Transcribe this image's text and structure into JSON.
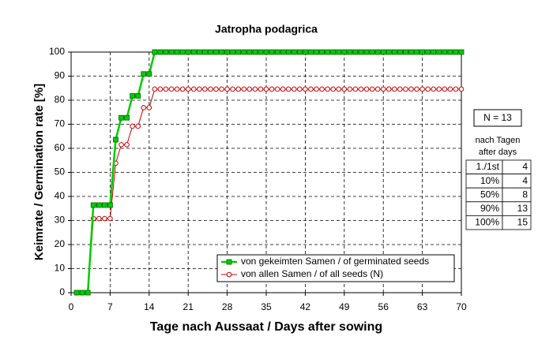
{
  "chart_data": {
    "type": "line",
    "title": "Jatropha podagrica",
    "x_label": "Tage nach Aussaat / Days after sowing",
    "y_label": "Keimrate / Germination rate [%]",
    "x": [
      1,
      2,
      3,
      4,
      5,
      6,
      7,
      8,
      9,
      10,
      11,
      12,
      13,
      14,
      15,
      16,
      17,
      18,
      19,
      20,
      21,
      22,
      23,
      24,
      25,
      26,
      27,
      28,
      29,
      30,
      31,
      32,
      33,
      34,
      35,
      36,
      37,
      38,
      39,
      40,
      41,
      42,
      43,
      44,
      45,
      46,
      47,
      48,
      49,
      50,
      51,
      52,
      53,
      54,
      55,
      56,
      57,
      58,
      59,
      60,
      61,
      62,
      63,
      64,
      65,
      66,
      67,
      68,
      69,
      70
    ],
    "series": [
      {
        "name": "von gekeimten Samen / of germinated seeds",
        "color": "#00cc00",
        "marker": "square",
        "values": [
          0,
          0,
          0,
          36.4,
          36.4,
          36.4,
          36.4,
          63.6,
          72.7,
          72.7,
          81.8,
          81.8,
          90.9,
          90.9,
          100,
          100,
          100,
          100,
          100,
          100,
          100,
          100,
          100,
          100,
          100,
          100,
          100,
          100,
          100,
          100,
          100,
          100,
          100,
          100,
          100,
          100,
          100,
          100,
          100,
          100,
          100,
          100,
          100,
          100,
          100,
          100,
          100,
          100,
          100,
          100,
          100,
          100,
          100,
          100,
          100,
          100,
          100,
          100,
          100,
          100,
          100,
          100,
          100,
          100,
          100,
          100,
          100,
          100,
          100,
          100
        ]
      },
      {
        "name": "von allen Samen / of all seeds (N)",
        "color": "#cc0000",
        "marker": "circle",
        "values": [
          0,
          0,
          0,
          30.8,
          30.8,
          30.8,
          30.8,
          53.8,
          61.5,
          61.5,
          69.2,
          69.2,
          76.9,
          76.9,
          84.6,
          84.6,
          84.6,
          84.6,
          84.6,
          84.6,
          84.6,
          84.6,
          84.6,
          84.6,
          84.6,
          84.6,
          84.6,
          84.6,
          84.6,
          84.6,
          84.6,
          84.6,
          84.6,
          84.6,
          84.6,
          84.6,
          84.6,
          84.6,
          84.6,
          84.6,
          84.6,
          84.6,
          84.6,
          84.6,
          84.6,
          84.6,
          84.6,
          84.6,
          84.6,
          84.6,
          84.6,
          84.6,
          84.6,
          84.6,
          84.6,
          84.6,
          84.6,
          84.6,
          84.6,
          84.6,
          84.6,
          84.6,
          84.6,
          84.6,
          84.6,
          84.6,
          84.6,
          84.6,
          84.6,
          84.6
        ]
      }
    ],
    "xlim": [
      0,
      70
    ],
    "xticks": [
      0,
      7,
      14,
      21,
      28,
      35,
      42,
      49,
      56,
      63,
      70
    ],
    "ylim": [
      0,
      100
    ],
    "yticks": [
      0,
      10,
      20,
      30,
      40,
      50,
      60,
      70,
      80,
      90,
      100
    ],
    "grid": true,
    "legend": "lower right"
  },
  "side_panel": {
    "n_label": "N = 13",
    "heading": [
      "nach Tagen",
      "after days"
    ],
    "rows": [
      [
        "1./1st",
        "4"
      ],
      [
        "10%",
        "4"
      ],
      [
        "50%",
        "8"
      ],
      [
        "90%",
        "13"
      ],
      [
        "100%",
        "15"
      ]
    ]
  }
}
